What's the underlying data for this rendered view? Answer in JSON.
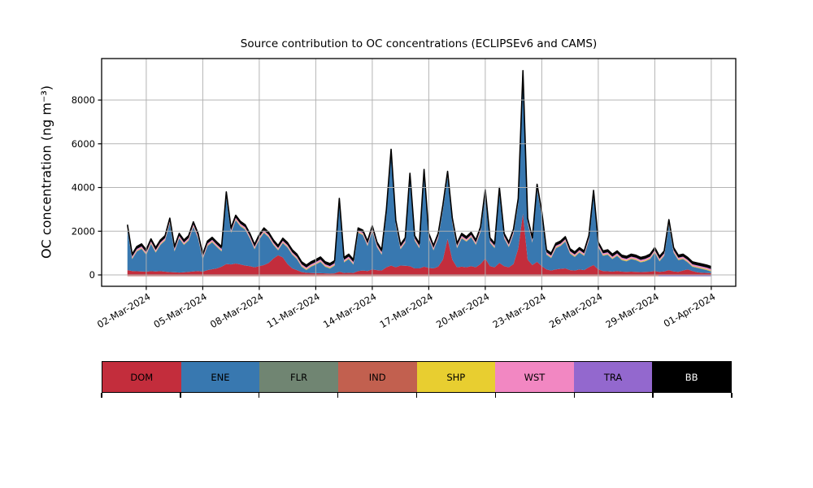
{
  "figure": {
    "title": "Source contribution to OC concentrations (ECLIPSEv6 and CAMS)",
    "ylabel": "OC concentration (ng m⁻³)"
  },
  "chart_data": {
    "type": "area",
    "stacked": true,
    "title": "Source contribution to OC concentrations (ECLIPSEv6 and CAMS)",
    "ylabel": "OC concentration (ng m⁻³)",
    "xlabel": "",
    "start_date": "01-Mar-2024",
    "x_step_days": 0.25,
    "n_points": 125,
    "xlim_days": [
      -1.37,
      32.3
    ],
    "ylim": [
      -520,
      9900
    ],
    "y_ticks": [
      0,
      2000,
      4000,
      6000,
      8000
    ],
    "x_ticks": {
      "days": [
        1,
        4,
        7,
        10,
        13,
        16,
        19,
        22,
        25,
        28,
        31
      ],
      "labels": [
        "02-Mar-2024",
        "05-Mar-2024",
        "08-Mar-2024",
        "11-Mar-2024",
        "14-Mar-2024",
        "17-Mar-2024",
        "20-Mar-2024",
        "23-Mar-2024",
        "26-Mar-2024",
        "29-Mar-2024",
        "01-Apr-2024"
      ]
    },
    "grid": true,
    "grid_color": "#b0b0b0",
    "outline_color": "#000000",
    "stack_order": [
      "DOM",
      "ENE",
      "FLR",
      "SHP",
      "WST",
      "TRA",
      "BB"
    ],
    "series": [
      {
        "name": "DOM",
        "color": "#c32d3c",
        "values": [
          220,
          180,
          170,
          160,
          150,
          175,
          160,
          175,
          150,
          130,
          120,
          110,
          120,
          140,
          160,
          180,
          150,
          220,
          260,
          300,
          380,
          500,
          480,
          520,
          480,
          430,
          400,
          350,
          400,
          450,
          550,
          750,
          900,
          800,
          500,
          300,
          220,
          130,
          100,
          90,
          80,
          80,
          70,
          60,
          70,
          150,
          90,
          100,
          90,
          180,
          200,
          180,
          250,
          220,
          200,
          350,
          430,
          350,
          430,
          420,
          400,
          300,
          300,
          380,
          320,
          300,
          380,
          700,
          1650,
          700,
          350,
          380,
          350,
          400,
          350,
          500,
          750,
          400,
          350,
          550,
          400,
          350,
          500,
          1200,
          2800,
          700,
          450,
          600,
          400,
          250,
          200,
          250,
          280,
          300,
          220,
          200,
          250,
          220,
          350,
          450,
          250,
          180,
          170,
          150,
          180,
          150,
          140,
          150,
          140,
          130,
          140,
          150,
          180,
          140,
          160,
          220,
          160,
          140,
          200,
          250,
          180,
          120,
          100,
          90,
          80
        ]
      },
      {
        "name": "ENE",
        "color": "#3878b0",
        "values": [
          1850,
          540,
          900,
          1030,
          770,
          1245,
          860,
          1195,
          1420,
          2240,
          950,
          1560,
          1250,
          1430,
          2040,
          1490,
          570,
          1100,
          1230,
          970,
          690,
          3070,
          1440,
          1980,
          1740,
          1640,
          1270,
          820,
          1220,
          1470,
          1170,
          620,
          220,
          650,
          750,
          620,
          500,
          240,
          120,
          280,
          390,
          510,
          300,
          230,
          350,
          3120,
          480,
          620,
          380,
          1740,
          1620,
          1140,
          1770,
          1050,
          720,
          2420,
          5090,
          1920,
          740,
          1050,
          4020,
          1270,
          920,
          4220,
          1350,
          820,
          1290,
          2270,
          2860,
          1670,
          870,
          1290,
          1170,
          1320,
          1020,
          1470,
          2920,
          1070,
          870,
          3220,
          1270,
          920,
          1370,
          2070,
          6320,
          1670,
          1020,
          3320,
          2270,
          670,
          570,
          970,
          1040,
          1220,
          750,
          620,
          770,
          650,
          1220,
          3190,
          1020,
          690,
          750,
          570,
          690,
          520,
          480,
          570,
          530,
          440,
          480,
          570,
          840,
          480,
          710,
          2080,
          860,
          530,
          520,
          320,
          190,
          200,
          170,
          130,
          70
        ]
      },
      {
        "name": "FLR",
        "color": "#708572",
        "constant": 15
      },
      {
        "name": "IND",
        "color": "#c2604f",
        "constant": -60
      },
      {
        "name": "SHP",
        "color": "#e8ce30",
        "constant": 30
      },
      {
        "name": "WST",
        "color": "#f287c2",
        "constant": 60
      },
      {
        "name": "TRA",
        "color": "#9368ce",
        "constant": 15
      },
      {
        "name": "BB",
        "color": "#000000",
        "constant": 110
      }
    ],
    "below_zero_bands": [
      {
        "series": "IND",
        "color": "#cf7a78",
        "from_day": 0,
        "to_day": 28.2,
        "value": -60
      },
      {
        "series": "TRA",
        "color": "#8a6bb8",
        "from_day": 28.2,
        "to_day": 31,
        "value": -60
      }
    ],
    "legend": {
      "position": "bottom",
      "items": [
        {
          "label": "DOM",
          "color": "#c32d3c",
          "text_color": "#000000"
        },
        {
          "label": "ENE",
          "color": "#3878b0",
          "text_color": "#000000"
        },
        {
          "label": "FLR",
          "color": "#708572",
          "text_color": "#000000"
        },
        {
          "label": "IND",
          "color": "#c2604f",
          "text_color": "#000000"
        },
        {
          "label": "SHP",
          "color": "#e8ce30",
          "text_color": "#000000"
        },
        {
          "label": "WST",
          "color": "#f287c2",
          "text_color": "#000000"
        },
        {
          "label": "TRA",
          "color": "#9368ce",
          "text_color": "#000000"
        },
        {
          "label": "BB",
          "color": "#000000",
          "text_color": "#ffffff"
        }
      ]
    }
  }
}
